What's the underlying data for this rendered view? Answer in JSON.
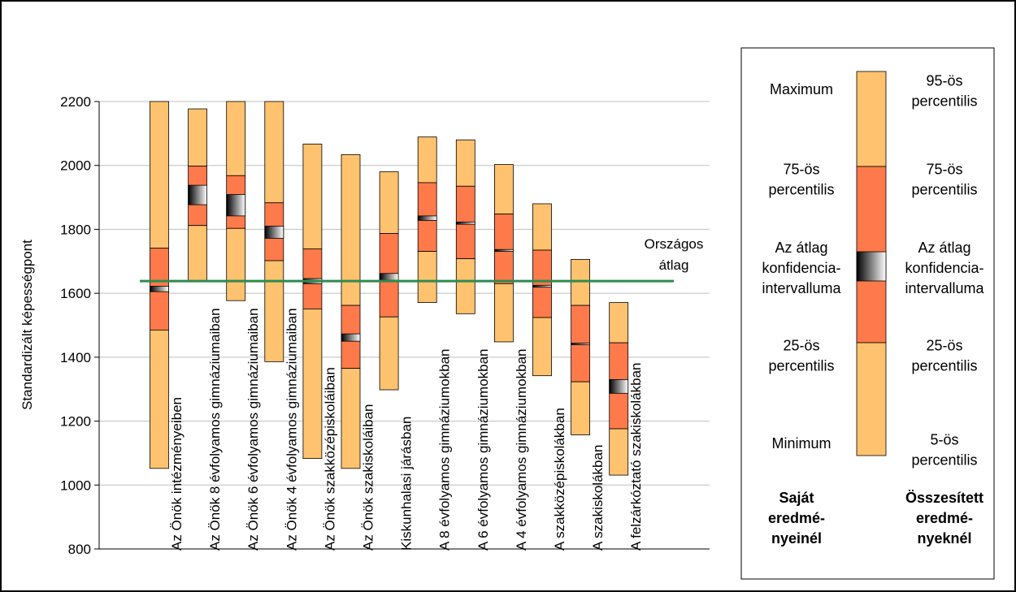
{
  "colors": {
    "outer": "#FFC26E",
    "inner": "#FF7A4A",
    "average_line": "#2E8B4E",
    "grid": "#BFBFBF",
    "ci_dark": "#000000",
    "ci_light": "#FFFFFF"
  },
  "chart_data": {
    "type": "box",
    "ylabel": "Standardizált képességpont",
    "ylim": [
      800,
      2200
    ],
    "yticks": [
      800,
      1000,
      1200,
      1400,
      1600,
      1800,
      2000,
      2200
    ],
    "grid": true,
    "reference_line": {
      "label_lines": [
        "Országos",
        "átlag"
      ],
      "value": 1638
    },
    "categories": [
      "Az Önök intézményeiben",
      "Az Önök 8 évfolyamos gimnáziumaiban",
      "Az Önök 6 évfolyamos gimnáziumaiban",
      "Az Önök 4 évfolyamos gimnáziumaiban",
      "Az Önök szakközépiskoláiban",
      "Az Önök szakiskoláiban",
      "Kiskunhalasi járásban",
      "A 8 évfolyamos gimnáziumokban",
      "A 6 évfolyamos gimnáziumokban",
      "A 4 évfolyamos gimnáziumokban",
      "A szakközépiskolákban",
      "A szakiskolákban",
      "A felzárkóztató szakiskolákban"
    ],
    "series": [
      {
        "name": "Az Önök intézményeiben",
        "min": 1052,
        "q1": 1485,
        "ci_low": 1605,
        "ci_high": 1622,
        "q3": 1741,
        "max": 2200
      },
      {
        "name": "Az Önök 8 évfolyamos gimnáziumaiban",
        "min": 1638,
        "q1": 1812,
        "ci_low": 1877,
        "ci_high": 1938,
        "q3": 1998,
        "max": 2177
      },
      {
        "name": "Az Önök 6 évfolyamos gimnáziumaiban",
        "min": 1577,
        "q1": 1803,
        "ci_low": 1842,
        "ci_high": 1909,
        "q3": 1968,
        "max": 2200
      },
      {
        "name": "Az Önök 4 évfolyamos gimnáziumaiban",
        "min": 1386,
        "q1": 1702,
        "ci_low": 1772,
        "ci_high": 1810,
        "q3": 1883,
        "max": 2200
      },
      {
        "name": "Az Önök szakközépiskoláiban",
        "min": 1083,
        "q1": 1551,
        "ci_low": 1630,
        "ci_high": 1646,
        "q3": 1739,
        "max": 2067
      },
      {
        "name": "Az Önök szakiskoláiban",
        "min": 1052,
        "q1": 1365,
        "ci_low": 1450,
        "ci_high": 1473,
        "q3": 1562,
        "max": 2034
      },
      {
        "name": "Kiskunhalasi járásban",
        "min": 1298,
        "q1": 1526,
        "ci_low": 1641,
        "ci_high": 1662,
        "q3": 1787,
        "max": 1980
      },
      {
        "name": "A 8 évfolyamos gimnáziumokban",
        "min": 1571,
        "q1": 1731,
        "ci_low": 1828,
        "ci_high": 1842,
        "q3": 1946,
        "max": 2089
      },
      {
        "name": "A 6 évfolyamos gimnáziumokban",
        "min": 1536,
        "q1": 1708,
        "ci_low": 1816,
        "ci_high": 1823,
        "q3": 1935,
        "max": 2080
      },
      {
        "name": "A 4 évfolyamos gimnáziumokban",
        "min": 1448,
        "q1": 1630,
        "ci_low": 1731,
        "ci_high": 1737,
        "q3": 1848,
        "max": 2003
      },
      {
        "name": "A szakközépiskolákban",
        "min": 1342,
        "q1": 1524,
        "ci_low": 1619,
        "ci_high": 1625,
        "q3": 1735,
        "max": 1880
      },
      {
        "name": "A szakiskolákban",
        "min": 1157,
        "q1": 1323,
        "ci_low": 1439,
        "ci_high": 1444,
        "q3": 1562,
        "max": 1706
      },
      {
        "name": "A felzárkóztató szakiskolákban",
        "min": 1031,
        "q1": 1176,
        "ci_low": 1287,
        "ci_high": 1330,
        "q3": 1445,
        "max": 1571
      }
    ]
  },
  "legend": {
    "left_labels": [
      "Maximum",
      "75-ös|percentilis",
      "Az átlag|konfidencia-|intervalluma",
      "25-ös|percentilis",
      "Minimum"
    ],
    "right_labels": [
      "95-ös|percentilis",
      "75-ös|percentilis",
      "Az átlag|konfidencia-|intervalluma",
      "25-ös|percentilis",
      "5-ös|percentilis"
    ],
    "left_heading": [
      "Saját",
      "eredmé-",
      "nyeinél"
    ],
    "right_heading": [
      "Összesített",
      "eredmé-",
      "nyeknél"
    ]
  }
}
